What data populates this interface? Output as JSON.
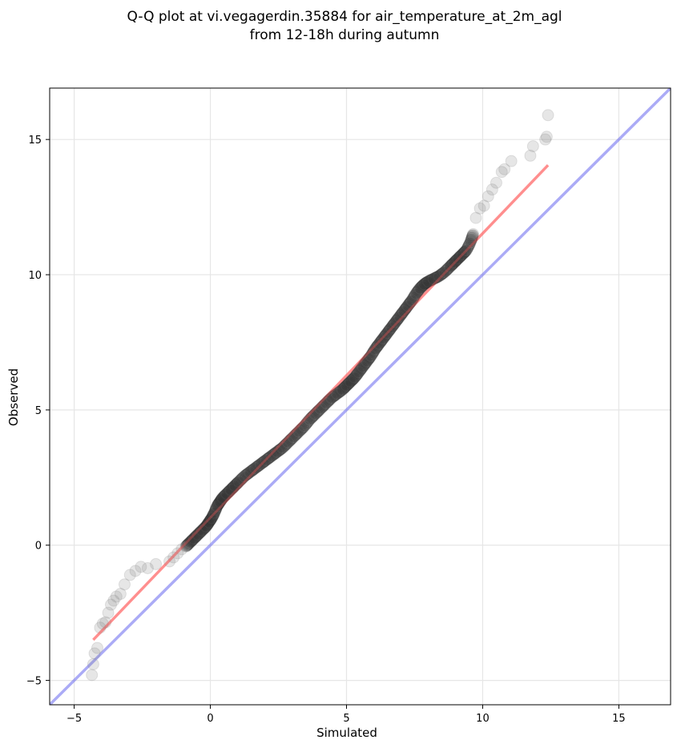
{
  "chart_data": {
    "type": "scatter",
    "title_line1": "Q-Q plot at vi.vegagerdin.35884 for air_temperature_at_2m_agl",
    "title_line2": "from 12-18h during autumn",
    "xlabel": "Simulated",
    "ylabel": "Observed",
    "xlim": [
      -5.9,
      16.9
    ],
    "ylim": [
      -5.9,
      16.9
    ],
    "xticks": [
      -5,
      0,
      5,
      10,
      15
    ],
    "yticks": [
      -5,
      0,
      5,
      10,
      15
    ],
    "grid": true,
    "colors": {
      "points": "#808080",
      "fit_line": "#ff6666",
      "identity_line": "#6666ee"
    },
    "identity_line": {
      "label": "",
      "x": [
        -5.9,
        16.9
      ],
      "y": [
        -5.9,
        16.9
      ]
    },
    "fit_line": {
      "x": [
        -4.3,
        12.4
      ],
      "y": [
        -3.5,
        14.05
      ]
    },
    "points": {
      "x": [
        -4.35,
        -4.3,
        -4.25,
        -4.15,
        -4.05,
        -3.95,
        -3.85,
        -3.75,
        -3.65,
        -3.55,
        -3.45,
        -3.3,
        -3.15,
        -2.95,
        -2.75,
        -2.55,
        -2.3,
        -2.0,
        -1.5,
        -1.35,
        -1.2,
        -1.05,
        -0.9,
        -0.75,
        -0.6,
        -0.45,
        -0.3,
        -0.15,
        -0.05,
        0.05,
        0.15,
        0.25,
        0.35,
        0.45,
        0.6,
        0.75,
        0.9,
        1.05,
        1.25,
        1.45,
        1.65,
        1.85,
        2.05,
        2.25,
        2.45,
        2.65,
        2.85,
        3.05,
        3.25,
        3.45,
        3.65,
        3.85,
        4.05,
        4.25,
        4.45,
        4.65,
        4.85,
        5.0,
        5.15,
        5.3,
        5.45,
        5.6,
        5.75,
        5.9,
        6.05,
        6.2,
        6.35,
        6.5,
        6.65,
        6.8,
        6.95,
        7.1,
        7.25,
        7.4,
        7.55,
        7.7,
        7.85,
        8.0,
        8.2,
        8.4,
        8.6,
        8.8,
        8.95,
        9.1,
        9.25,
        9.4,
        9.55,
        9.65,
        9.75,
        9.9,
        10.05,
        10.2,
        10.35,
        10.5,
        10.7,
        10.8,
        11.05,
        11.75,
        11.85,
        12.3,
        12.35,
        12.4
      ],
      "y": [
        -4.8,
        -4.4,
        -4.0,
        -3.8,
        -3.05,
        -2.9,
        -2.85,
        -2.5,
        -2.2,
        -2.05,
        -1.9,
        -1.8,
        -1.45,
        -1.1,
        -0.95,
        -0.8,
        -0.85,
        -0.7,
        -0.6,
        -0.45,
        -0.3,
        -0.15,
        -0.05,
        0.1,
        0.25,
        0.4,
        0.55,
        0.7,
        0.85,
        1.0,
        1.2,
        1.45,
        1.6,
        1.75,
        1.9,
        2.05,
        2.2,
        2.35,
        2.55,
        2.7,
        2.85,
        3.0,
        3.15,
        3.3,
        3.45,
        3.6,
        3.8,
        4.0,
        4.2,
        4.4,
        4.65,
        4.85,
        5.05,
        5.25,
        5.45,
        5.6,
        5.75,
        5.9,
        6.05,
        6.2,
        6.4,
        6.6,
        6.8,
        7.0,
        7.25,
        7.45,
        7.65,
        7.85,
        8.05,
        8.25,
        8.45,
        8.65,
        8.85,
        9.05,
        9.3,
        9.5,
        9.65,
        9.75,
        9.85,
        9.95,
        10.1,
        10.3,
        10.45,
        10.6,
        10.75,
        10.9,
        11.2,
        11.5,
        12.1,
        12.45,
        12.55,
        12.9,
        13.15,
        13.4,
        13.8,
        13.9,
        14.2,
        14.4,
        14.75,
        15.0,
        15.1,
        15.9
      ]
    }
  }
}
